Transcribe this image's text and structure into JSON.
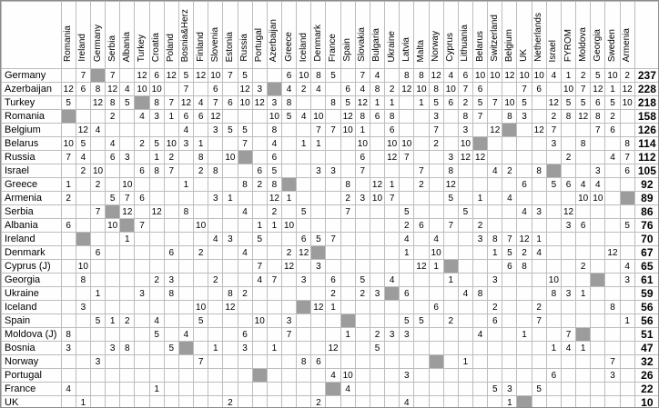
{
  "table": {
    "corner_label": "",
    "total_header": "",
    "columns": [
      "Romania",
      "Ireland",
      "Germany",
      "Serbia",
      "Albania",
      "Turkey",
      "Croatia",
      "Poland",
      "Bosnia&Herz",
      "Finland",
      "Slovenia",
      "Estonia",
      "Russia",
      "Portugal",
      "Azerbaijan",
      "Greece",
      "Iceland",
      "Denmark",
      "France",
      "Spain",
      "Slovakia",
      "Bulgaria",
      "Ukraine",
      "Latvia",
      "Malta",
      "Norway",
      "Cyprus",
      "Lithuania",
      "Belarus",
      "Switzerland",
      "Belgium",
      "UK",
      "Netherlands",
      "Israel",
      "FYROM",
      "Moldova",
      "Georgia",
      "Sweden",
      "Armenia"
    ],
    "rows": [
      {
        "label": "Germany",
        "self": "Germany",
        "total": 237,
        "points": {
          "Ireland": 7,
          "Serbia": 7,
          "Turkey": 12,
          "Croatia": 6,
          "Poland": 12,
          "Bosnia&Herz": 5,
          "Finland": 12,
          "Slovenia": 10,
          "Estonia": 7,
          "Russia": 5,
          "Greece": 6,
          "Iceland": 10,
          "Denmark": 8,
          "France": 5,
          "Slovakia": 7,
          "Bulgaria": 4,
          "Latvia": 8,
          "Malta": 8,
          "Norway": 12,
          "Cyprus": 4,
          "Lithuania": 6,
          "Belarus": 10,
          "Switzerland": 10,
          "Belgium": 12,
          "UK": 10,
          "Netherlands": 10,
          "Israel": 4,
          "FYROM": 1,
          "Moldova": 2,
          "Georgia": 5,
          "Sweden": 10,
          "Armenia": 2
        }
      },
      {
        "label": "Azerbaijan",
        "self": "Azerbaijan",
        "total": 228,
        "points": {
          "Romania": 12,
          "Ireland": 6,
          "Germany": 8,
          "Serbia": 12,
          "Albania": 4,
          "Turkey": 10,
          "Croatia": 10,
          "Bosnia&Herz": 7,
          "Slovenia": 6,
          "Russia": 12,
          "Portugal": 3,
          "Greece": 4,
          "Iceland": 2,
          "Denmark": 4,
          "Spain": 6,
          "Slovakia": 4,
          "Bulgaria": 8,
          "Ukraine": 2,
          "Latvia": 12,
          "Malta": 10,
          "Norway": 8,
          "Cyprus": 10,
          "Lithuania": 7,
          "Belarus": 6,
          "UK": 7,
          "Netherlands": 6,
          "FYROM": 10,
          "Moldova": 7,
          "Georgia": 12,
          "Sweden": 1,
          "Armenia": 12
        }
      },
      {
        "label": "Turkey",
        "self": "Turkey",
        "total": 218,
        "points": {
          "Romania": 5,
          "Germany": 12,
          "Serbia": 8,
          "Albania": 5,
          "Croatia": 8,
          "Poland": 7,
          "Bosnia&Herz": 12,
          "Finland": 4,
          "Slovenia": 7,
          "Estonia": 6,
          "Russia": 10,
          "Portugal": 12,
          "Azerbaijan": 3,
          "Greece": 8,
          "France": 8,
          "Spain": 5,
          "Slovakia": 12,
          "Bulgaria": 1,
          "Ukraine": 1,
          "Malta": 1,
          "Norway": 5,
          "Cyprus": 6,
          "Lithuania": 2,
          "Belarus": 5,
          "Switzerland": 7,
          "Belgium": 10,
          "UK": 5,
          "Israel": 12,
          "FYROM": 5,
          "Moldova": 5,
          "Georgia": 6,
          "Sweden": 5,
          "Armenia": 10
        }
      },
      {
        "label": "Romania",
        "self": "Romania",
        "total": 158,
        "points": {
          "Serbia": 2,
          "Turkey": 4,
          "Croatia": 3,
          "Poland": 1,
          "Bosnia&Herz": 6,
          "Finland": 6,
          "Slovenia": 12,
          "Azerbaijan": 10,
          "Greece": 5,
          "Iceland": 4,
          "Denmark": 10,
          "Spain": 12,
          "Slovakia": 8,
          "Bulgaria": 6,
          "Ukraine": 8,
          "Norway": 3,
          "Lithuania": 8,
          "Belarus": 7,
          "Belgium": 8,
          "UK": 3,
          "Israel": 2,
          "FYROM": 8,
          "Moldova": 12,
          "Georgia": 8,
          "Sweden": 2
        }
      },
      {
        "label": "Belgium",
        "self": "Belgium",
        "total": 126,
        "points": {
          "Ireland": 12,
          "Germany": 4,
          "Bosnia&Herz": 4,
          "Slovenia": 3,
          "Estonia": 5,
          "Russia": 5,
          "Azerbaijan": 8,
          "Denmark": 7,
          "France": 7,
          "Spain": 10,
          "Slovakia": 1,
          "Ukraine": 6,
          "Norway": 7,
          "Lithuania": 3,
          "Switzerland": 12,
          "Netherlands": 12,
          "Israel": 7,
          "Georgia": 7,
          "Sweden": 6
        }
      },
      {
        "label": "Belarus",
        "self": "Belarus",
        "total": 114,
        "points": {
          "Romania": 10,
          "Ireland": 5,
          "Serbia": 4,
          "Turkey": 2,
          "Croatia": 5,
          "Poland": 10,
          "Bosnia&Herz": 3,
          "Finland": 1,
          "Russia": 7,
          "Azerbaijan": 4,
          "Iceland": 1,
          "Denmark": 1,
          "Slovakia": 10,
          "Ukraine": 10,
          "Latvia": 10,
          "Norway": 2,
          "Lithuania": 10,
          "Israel": 3,
          "Moldova": 8,
          "Armenia": 8
        }
      },
      {
        "label": "Russia",
        "self": "Russia",
        "total": 112,
        "points": {
          "Romania": 7,
          "Ireland": 4,
          "Serbia": 6,
          "Albania": 3,
          "Croatia": 1,
          "Poland": 2,
          "Finland": 8,
          "Estonia": 10,
          "Azerbaijan": 6,
          "Slovakia": 6,
          "Ukraine": 12,
          "Latvia": 7,
          "Cyprus": 3,
          "Lithuania": 12,
          "Belarus": 12,
          "FYROM": 2,
          "Sweden": 4,
          "Armenia": 7
        }
      },
      {
        "label": "Israel",
        "self": "Israel",
        "total": 105,
        "points": {
          "Ireland": 2,
          "Germany": 10,
          "Turkey": 6,
          "Croatia": 8,
          "Poland": 7,
          "Finland": 2,
          "Slovenia": 8,
          "Portugal": 6,
          "Azerbaijan": 5,
          "Denmark": 3,
          "France": 3,
          "Slovakia": 7,
          "Malta": 7,
          "Cyprus": 8,
          "Switzerland": 4,
          "Belgium": 2,
          "Netherlands": 8,
          "Georgia": 3,
          "Armenia": 6
        }
      },
      {
        "label": "Greece",
        "self": "Greece",
        "total": 92,
        "points": {
          "Romania": 1,
          "Germany": 2,
          "Albania": 10,
          "Bosnia&Herz": 1,
          "Russia": 8,
          "Portugal": 2,
          "Azerbaijan": 8,
          "Spain": 8,
          "Bulgaria": 12,
          "Ukraine": 1,
          "Malta": 2,
          "Cyprus": 12,
          "UK": 6,
          "Israel": 5,
          "FYROM": 6,
          "Moldova": 4,
          "Georgia": 4
        }
      },
      {
        "label": "Armenia",
        "self": "Armenia",
        "total": 89,
        "points": {
          "Romania": 2,
          "Serbia": 5,
          "Albania": 7,
          "Turkey": 6,
          "Slovenia": 3,
          "Estonia": 1,
          "Azerbaijan": 12,
          "Greece": 1,
          "Spain": 2,
          "Slovakia": 3,
          "Bulgaria": 10,
          "Ukraine": 7,
          "Cyprus": 5,
          "Belarus": 1,
          "Belgium": 4,
          "Moldova": 10,
          "Georgia": 10
        }
      },
      {
        "label": "Serbia",
        "self": "Serbia",
        "total": 86,
        "points": {
          "Germany": 7,
          "Albania": 12,
          "Croatia": 12,
          "Bosnia&Herz": 8,
          "Russia": 4,
          "Azerbaijan": 2,
          "Iceland": 5,
          "Spain": 7,
          "Latvia": 5,
          "Lithuania": 5,
          "UK": 4,
          "Netherlands": 3,
          "FYROM": 12
        }
      },
      {
        "label": "Albania",
        "self": "Albania",
        "total": 76,
        "points": {
          "Romania": 6,
          "Serbia": 10,
          "Turkey": 7,
          "Finland": 10,
          "Portugal": 1,
          "Azerbaijan": 1,
          "Greece": 10,
          "Latvia": 2,
          "Malta": 6,
          "Cyprus": 7,
          "Belarus": 2,
          "FYROM": 3,
          "Moldova": 6,
          "Armenia": 5
        }
      },
      {
        "label": "Ireland",
        "self": "Ireland",
        "total": 70,
        "points": {
          "Albania": 1,
          "Slovenia": 4,
          "Estonia": 3,
          "Portugal": 5,
          "Iceland": 6,
          "Denmark": 5,
          "France": 7,
          "Latvia": 4,
          "Norway": 4,
          "Belarus": 3,
          "Switzerland": 8,
          "Belgium": 7,
          "UK": 12,
          "Netherlands": 1
        }
      },
      {
        "label": "Denmark",
        "self": "Denmark",
        "total": 67,
        "points": {
          "Germany": 6,
          "Poland": 6,
          "Finland": 2,
          "Russia": 4,
          "Greece": 2,
          "Iceland": 12,
          "Latvia": 1,
          "Norway": 10,
          "Switzerland": 1,
          "Belgium": 5,
          "UK": 2,
          "Netherlands": 4,
          "Sweden": 12
        }
      },
      {
        "label": "Cyprus (J)",
        "self": "Cyprus",
        "total": 65,
        "points": {
          "Ireland": 10,
          "Portugal": 7,
          "Greece": 12,
          "Denmark": 3,
          "Malta": 12,
          "Norway": 1,
          "Belgium": 6,
          "UK": 8,
          "Moldova": 2,
          "Armenia": 4
        }
      },
      {
        "label": "Georgia",
        "self": "Georgia",
        "total": 61,
        "points": {
          "Ireland": 8,
          "Croatia": 2,
          "Poland": 3,
          "Slovenia": 2,
          "Portugal": 4,
          "Azerbaijan": 7,
          "Iceland": 3,
          "France": 6,
          "Slovakia": 5,
          "Ukraine": 4,
          "Cyprus": 1,
          "Switzerland": 3,
          "Israel": 10,
          "Armenia": 3
        }
      },
      {
        "label": "Ukraine",
        "self": "Ukraine",
        "total": 59,
        "points": {
          "Germany": 1,
          "Turkey": 3,
          "Poland": 8,
          "Estonia": 8,
          "Russia": 2,
          "France": 2,
          "Slovakia": 2,
          "Bulgaria": 3,
          "Latvia": 6,
          "Lithuania": 4,
          "Belarus": 8,
          "Israel": 8,
          "FYROM": 3,
          "Moldova": 1
        }
      },
      {
        "label": "Iceland",
        "self": "Iceland",
        "total": 56,
        "points": {
          "Ireland": 3,
          "Finland": 10,
          "Estonia": 12,
          "Denmark": 12,
          "France": 1,
          "Norway": 6,
          "Switzerland": 2,
          "Netherlands": 2,
          "Sweden": 8
        }
      },
      {
        "label": "Spain",
        "self": "Spain",
        "total": 56,
        "points": {
          "Germany": 5,
          "Serbia": 1,
          "Albania": 2,
          "Croatia": 4,
          "Finland": 5,
          "Portugal": 10,
          "Greece": 3,
          "Latvia": 5,
          "Malta": 5,
          "Cyprus": 2,
          "Switzerland": 6,
          "Netherlands": 7,
          "Armenia": 1
        }
      },
      {
        "label": "Moldova (J)",
        "self": "Moldova",
        "total": 51,
        "points": {
          "Romania": 8,
          "Croatia": 5,
          "Bosnia&Herz": 4,
          "Russia": 6,
          "Greece": 7,
          "Spain": 1,
          "Bulgaria": 2,
          "Ukraine": 3,
          "Latvia": 3,
          "Belarus": 4,
          "UK": 1,
          "FYROM": 7
        }
      },
      {
        "label": "Bosnia",
        "self": "Bosnia&Herz",
        "total": 47,
        "points": {
          "Romania": 3,
          "Serbia": 3,
          "Albania": 8,
          "Poland": 5,
          "Slovenia": 1,
          "Russia": 3,
          "Azerbaijan": 1,
          "France": 12,
          "Bulgaria": 5,
          "Israel": 1,
          "FYROM": 4,
          "Moldova": 1
        }
      },
      {
        "label": "Norway",
        "self": "Norway",
        "total": 32,
        "points": {
          "Germany": 3,
          "Finland": 7,
          "Iceland": 8,
          "Denmark": 6,
          "Lithuania": 1,
          "Sweden": 7
        }
      },
      {
        "label": "Portugal",
        "self": "Portugal",
        "total": 26,
        "points": {
          "France": 4,
          "Spain": 10,
          "Latvia": 3,
          "Israel": 6,
          "Sweden": 3
        }
      },
      {
        "label": "France",
        "self": "France",
        "total": 22,
        "points": {
          "Romania": 4,
          "Croatia": 1,
          "Spain": 4,
          "Switzerland": 5,
          "Belgium": 3,
          "Netherlands": 5
        }
      },
      {
        "label": "UK",
        "self": "UK",
        "total": 10,
        "points": {
          "Ireland": 1,
          "Estonia": 2,
          "Denmark": 2,
          "Latvia": 4,
          "Belgium": 1
        }
      }
    ]
  },
  "colors": {
    "self_cell": "#9c9c9c",
    "grid_line": "#bdbdbd",
    "outer_border": "#8c8c8c",
    "cell_background": "#fefefe",
    "text": "#000000"
  }
}
